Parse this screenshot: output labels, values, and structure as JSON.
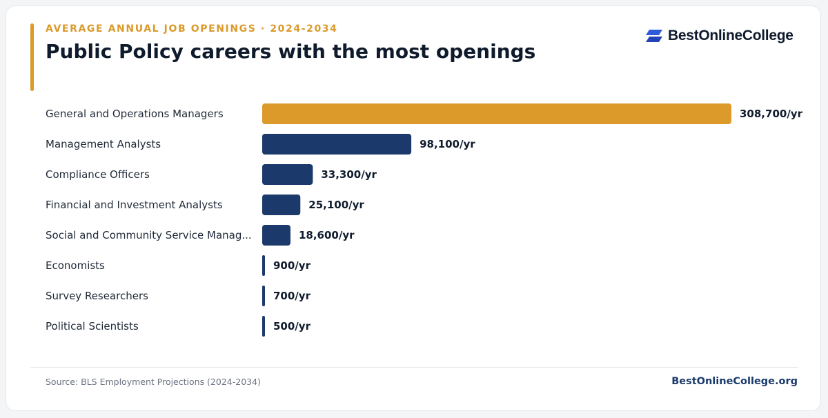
{
  "header": {
    "kicker": "AVERAGE ANNUAL JOB OPENINGS · 2024-2034",
    "title": "Public Policy careers with the most openings"
  },
  "logo": {
    "text": "BestOnlineCollege",
    "icon": "bestonlinecollege-logo-icon"
  },
  "footer": {
    "source": "Source: BLS Employment Projections (2024-2034)",
    "site": "BestOnlineCollege.org"
  },
  "colors": {
    "highlight": "#db9a2a",
    "bar": "#1b3a6b",
    "text": "#0f1b2d",
    "label": "#1f2937"
  },
  "chart_data": {
    "type": "bar",
    "orientation": "horizontal",
    "title": "Public Policy careers with the most openings",
    "subtitle": "AVERAGE ANNUAL JOB OPENINGS · 2024-2034",
    "categories": [
      "General and Operations Managers",
      "Management Analysts",
      "Compliance Officers",
      "Financial and Investment Analysts",
      "Social and Community Service Manag...",
      "Economists",
      "Survey Researchers",
      "Political Scientists"
    ],
    "values": [
      308700,
      98100,
      33300,
      25100,
      18600,
      900,
      700,
      500
    ],
    "value_labels": [
      "308,700/yr",
      "98,100/yr",
      "33,300/yr",
      "25,100/yr",
      "18,600/yr",
      "900/yr",
      "700/yr",
      "500/yr"
    ],
    "highlight_index": 0,
    "xlim": [
      0,
      308700
    ],
    "grid": false,
    "legend": "none"
  }
}
